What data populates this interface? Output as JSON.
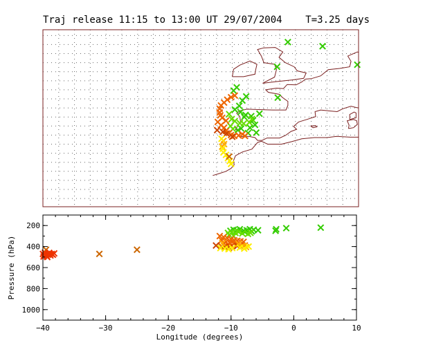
{
  "chart_data": [
    {
      "type": "scatter",
      "name_hint": "map",
      "title": "Traj release 11:15 to 13:00 UT 29/07/2004    T=3.25 days",
      "xlim": [
        -40,
        10
      ],
      "ylim": [
        20,
        63
      ],
      "grid": true,
      "series": [
        {
          "color": "#33cc00",
          "points": [
            [
              -1.2,
              60.0
            ],
            [
              4.3,
              59.0
            ],
            [
              -2.9,
              54.0
            ],
            [
              9.8,
              54.5
            ],
            [
              -2.8,
              46.5
            ],
            [
              -9.3,
              49.0
            ],
            [
              -9.8,
              48.2
            ],
            [
              -7.8,
              46.8
            ],
            [
              -8.4,
              45.8
            ],
            [
              -8.9,
              44.5
            ],
            [
              -9.6,
              43.6
            ],
            [
              -8.7,
              43.0
            ],
            [
              -7.9,
              42.3
            ],
            [
              -7.0,
              42.0
            ],
            [
              -6.7,
              41.0
            ],
            [
              -5.7,
              42.6
            ],
            [
              -6.4,
              39.9
            ],
            [
              -7.2,
              39.2
            ],
            [
              -8.6,
              39.0
            ],
            [
              -9.1,
              38.6
            ],
            [
              -6.2,
              38.0
            ],
            [
              -7.5,
              37.9
            ],
            [
              -8.1,
              41.8
            ]
          ]
        },
        {
          "color": "#66dd00",
          "points": [
            [
              -10.5,
              42.5
            ],
            [
              -10.1,
              41.3
            ],
            [
              -9.6,
              40.8
            ],
            [
              -8.8,
              40.3
            ],
            [
              -8.2,
              40.2
            ],
            [
              -7.3,
              40.5
            ],
            [
              -6.9,
              41.3
            ],
            [
              -10.3,
              39.6
            ],
            [
              -9.9,
              38.9
            ]
          ]
        },
        {
          "color": "#ee6600",
          "points": [
            [
              -9.6,
              47.0
            ],
            [
              -10.2,
              46.6
            ],
            [
              -10.8,
              46.0
            ],
            [
              -11.3,
              45.3
            ],
            [
              -11.8,
              44.6
            ],
            [
              -12.0,
              43.8
            ],
            [
              -12.0,
              42.9
            ],
            [
              -11.9,
              42.2
            ],
            [
              -11.6,
              41.6
            ],
            [
              -11.0,
              40.9
            ],
            [
              -12.3,
              40.6
            ],
            [
              -11.8,
              39.8
            ],
            [
              -11.3,
              39.2
            ],
            [
              -11.0,
              38.4
            ],
            [
              -10.5,
              37.9
            ],
            [
              -10.2,
              37.4
            ],
            [
              -9.7,
              37.2
            ],
            [
              -9.0,
              37.3
            ],
            [
              -8.4,
              37.6
            ],
            [
              -8.0,
              37.2
            ]
          ]
        },
        {
          "color": "#cc4400",
          "points": [
            [
              -11.5,
              38.2
            ],
            [
              -10.9,
              37.8
            ],
            [
              -10.0,
              37.0
            ],
            [
              -12.4,
              38.6
            ]
          ]
        },
        {
          "color": "#ffaa00",
          "points": [
            [
              -11.4,
              36.0
            ],
            [
              -11.3,
              35.2
            ],
            [
              -11.6,
              34.6
            ]
          ]
        },
        {
          "color": "#ffee00",
          "points": [
            [
              -11.7,
              36.5
            ],
            [
              -11.5,
              34.1
            ],
            [
              -11.4,
              33.2
            ],
            [
              -11.0,
              32.6
            ],
            [
              -10.7,
              31.8
            ],
            [
              -10.4,
              31.1
            ],
            [
              -10.2,
              30.4
            ]
          ]
        },
        {
          "color": "#cc6600",
          "points": [
            [
              -10.5,
              32.2
            ]
          ]
        }
      ],
      "coast": [
        [
          [
            -5.2,
            50.0
          ],
          [
            -3.3,
            51.5
          ],
          [
            -3.0,
            53.3
          ],
          [
            -3.3,
            54.6
          ],
          [
            -5.0,
            55.0
          ],
          [
            -5.4,
            56.6
          ],
          [
            -6.0,
            58.2
          ],
          [
            -5.0,
            58.6
          ],
          [
            -3.2,
            58.7
          ],
          [
            -2.0,
            57.6
          ],
          [
            -2.6,
            56.3
          ],
          [
            -1.6,
            55.0
          ],
          [
            -0.2,
            54.0
          ],
          [
            0.3,
            53.0
          ],
          [
            1.7,
            52.5
          ],
          [
            1.3,
            51.2
          ],
          [
            -0.5,
            50.8
          ],
          [
            -3.0,
            50.4
          ],
          [
            -5.2,
            50.0
          ]
        ],
        [
          [
            -10.0,
            51.6
          ],
          [
            -9.8,
            53.4
          ],
          [
            -8.8,
            54.4
          ],
          [
            -7.2,
            55.4
          ],
          [
            -6.1,
            54.6
          ],
          [
            -6.3,
            53.2
          ],
          [
            -6.4,
            52.2
          ],
          [
            -8.2,
            51.6
          ],
          [
            -10.0,
            51.6
          ]
        ],
        [
          [
            1.6,
            51.0
          ],
          [
            2.5,
            51.1
          ],
          [
            4.0,
            51.8
          ],
          [
            5.2,
            53.3
          ],
          [
            7.0,
            53.6
          ],
          [
            8.6,
            54.0
          ],
          [
            8.8,
            55.3
          ],
          [
            8.3,
            56.6
          ],
          [
            9.8,
            57.6
          ],
          [
            10.0,
            57.5
          ]
        ],
        [
          [
            1.6,
            51.0
          ],
          [
            1.0,
            50.3
          ],
          [
            0.1,
            49.6
          ],
          [
            -1.3,
            49.7
          ],
          [
            -1.9,
            48.7
          ],
          [
            -3.0,
            48.8
          ],
          [
            -4.7,
            48.4
          ],
          [
            -4.3,
            47.8
          ],
          [
            -2.5,
            47.3
          ],
          [
            -2.1,
            46.6
          ],
          [
            -1.2,
            45.6
          ],
          [
            -1.2,
            44.6
          ],
          [
            -1.5,
            43.5
          ],
          [
            -3.6,
            43.5
          ],
          [
            -5.8,
            43.6
          ],
          [
            -7.7,
            43.7
          ],
          [
            -8.8,
            43.3
          ],
          [
            -9.3,
            42.7
          ],
          [
            -8.8,
            41.9
          ],
          [
            -8.7,
            40.6
          ],
          [
            -9.2,
            39.5
          ],
          [
            -9.5,
            38.7
          ],
          [
            -8.9,
            38.5
          ],
          [
            -8.8,
            37.8
          ],
          [
            -8.9,
            37.0
          ],
          [
            -7.4,
            37.1
          ],
          [
            -6.4,
            36.8
          ],
          [
            -6.0,
            36.1
          ],
          [
            -5.3,
            36.1
          ],
          [
            -4.5,
            36.7
          ],
          [
            -2.5,
            36.7
          ],
          [
            -1.6,
            37.3
          ],
          [
            -0.7,
            38.3
          ],
          [
            0.2,
            38.8
          ],
          [
            -0.3,
            39.5
          ],
          [
            0.5,
            40.6
          ],
          [
            1.8,
            41.2
          ],
          [
            3.2,
            41.9
          ],
          [
            3.1,
            43.1
          ],
          [
            4.0,
            43.5
          ],
          [
            5.2,
            43.3
          ],
          [
            6.6,
            43.1
          ],
          [
            7.5,
            43.8
          ],
          [
            8.8,
            44.4
          ],
          [
            9.6,
            44.1
          ],
          [
            10.0,
            44.0
          ]
        ],
        [
          [
            10.0,
            36.9
          ],
          [
            8.7,
            36.9
          ],
          [
            6.5,
            37.1
          ],
          [
            5.0,
            36.8
          ],
          [
            3.0,
            36.8
          ],
          [
            1.0,
            36.5
          ],
          [
            -0.6,
            35.8
          ],
          [
            -2.2,
            35.2
          ],
          [
            -4.4,
            35.2
          ],
          [
            -5.4,
            35.9
          ],
          [
            -6.0,
            35.6
          ],
          [
            -6.9,
            34.0
          ],
          [
            -8.4,
            33.3
          ],
          [
            -9.5,
            32.4
          ],
          [
            -9.8,
            31.2
          ],
          [
            -9.7,
            30.2
          ],
          [
            -10.2,
            29.3
          ],
          [
            -11.0,
            28.6
          ],
          [
            -12.2,
            28.0
          ],
          [
            -13.1,
            27.6
          ]
        ],
        [
          [
            8.6,
            41.2
          ],
          [
            9.6,
            41.6
          ],
          [
            9.6,
            42.8
          ],
          [
            9.3,
            43.0
          ],
          [
            8.6,
            42.4
          ],
          [
            8.6,
            41.2
          ]
        ],
        [
          [
            8.4,
            39.0
          ],
          [
            9.2,
            39.2
          ],
          [
            9.8,
            40.0
          ],
          [
            9.7,
            40.9
          ],
          [
            9.2,
            41.2
          ],
          [
            8.2,
            40.9
          ],
          [
            8.5,
            39.8
          ],
          [
            8.4,
            39.0
          ]
        ],
        [
          [
            2.4,
            39.6
          ],
          [
            3.2,
            39.7
          ],
          [
            3.4,
            39.4
          ],
          [
            2.8,
            39.2
          ],
          [
            2.4,
            39.6
          ]
        ]
      ]
    },
    {
      "type": "scatter",
      "name_hint": "profile",
      "xlabel": "Longitude  (degrees)",
      "ylabel": "Pressure  (hPa)",
      "xlim": [
        -40,
        10
      ],
      "ylim": [
        1100,
        100
      ],
      "xticks": [
        -40,
        -30,
        -20,
        -10,
        0,
        10
      ],
      "yticks": [
        200,
        400,
        600,
        800,
        1000
      ],
      "series": [
        {
          "color": "#33cc00",
          "points": [
            [
              -1.2,
              225
            ],
            [
              4.3,
              220
            ],
            [
              -2.9,
              250
            ],
            [
              -2.8,
              235
            ],
            [
              -5.7,
              245
            ],
            [
              -6.4,
              240
            ],
            [
              -7.0,
              235
            ],
            [
              -7.5,
              245
            ],
            [
              -8.0,
              250
            ],
            [
              -8.6,
              235
            ],
            [
              -9.1,
              245
            ],
            [
              -9.6,
              240
            ],
            [
              -10.1,
              250
            ],
            [
              -6.7,
              255
            ],
            [
              -7.8,
              260
            ]
          ]
        },
        {
          "color": "#66dd00",
          "points": [
            [
              -10.5,
              270
            ],
            [
              -9.9,
              265
            ],
            [
              -9.3,
              270
            ],
            [
              -8.8,
              260
            ],
            [
              -8.2,
              275
            ],
            [
              -7.3,
              280
            ],
            [
              -6.9,
              270
            ],
            [
              -10.3,
              290
            ],
            [
              -9.6,
              300
            ]
          ]
        },
        {
          "color": "#ee6600",
          "points": [
            [
              -11.8,
              300
            ],
            [
              -11.2,
              310
            ],
            [
              -10.6,
              320
            ],
            [
              -10.0,
              330
            ],
            [
              -9.5,
              340
            ],
            [
              -9.0,
              345
            ],
            [
              -8.5,
              350
            ],
            [
              -8.0,
              355
            ],
            [
              -11.5,
              340
            ],
            [
              -10.8,
              355
            ],
            [
              -10.2,
              365
            ],
            [
              -9.6,
              370
            ],
            [
              -9.0,
              380
            ],
            [
              -8.4,
              385
            ],
            [
              -7.8,
              390
            ],
            [
              -11.0,
              390
            ],
            [
              -10.5,
              380
            ],
            [
              -9.9,
              395
            ]
          ]
        },
        {
          "color": "#cc4400",
          "points": [
            [
              -12.4,
              390
            ],
            [
              -11.5,
              400
            ],
            [
              -10.9,
              405
            ],
            [
              -10.3,
              410
            ],
            [
              -9.0,
              395
            ]
          ]
        },
        {
          "color": "#ffaa00",
          "points": [
            [
              -11.4,
              365
            ],
            [
              -8.8,
              375
            ],
            [
              -8.2,
              395
            ],
            [
              -7.6,
              405
            ]
          ]
        },
        {
          "color": "#ffee00",
          "points": [
            [
              -11.7,
              415
            ],
            [
              -11.0,
              420
            ],
            [
              -10.4,
              425
            ],
            [
              -9.8,
              415
            ],
            [
              -8.6,
              410
            ],
            [
              -7.9,
              420
            ],
            [
              -7.2,
              400
            ]
          ]
        },
        {
          "color": "#cc6600",
          "points": [
            [
              -25.0,
              430
            ],
            [
              -31.0,
              470
            ],
            [
              -39.5,
              430
            ]
          ]
        },
        {
          "color": "#ee3300",
          "points": [
            [
              -40.0,
              470
            ],
            [
              -39.8,
              480
            ],
            [
              -39.6,
              465
            ],
            [
              -39.4,
              490
            ],
            [
              -39.2,
              475
            ],
            [
              -39.0,
              460
            ],
            [
              -38.8,
              485
            ],
            [
              -38.6,
              470
            ],
            [
              -38.4,
              478
            ],
            [
              -38.2,
              465
            ],
            [
              -39.9,
              495
            ],
            [
              -39.7,
              458
            ],
            [
              -39.3,
              500
            ],
            [
              -38.9,
              472
            ]
          ]
        }
      ]
    }
  ]
}
